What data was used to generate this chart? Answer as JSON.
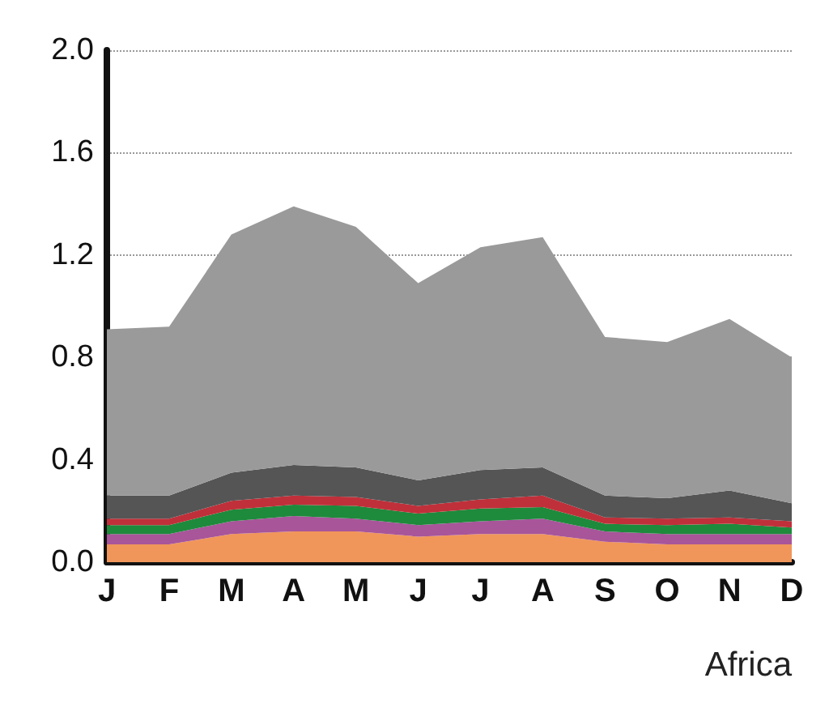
{
  "chart_data": {
    "type": "area",
    "stacked": true,
    "categories": [
      "J",
      "F",
      "M",
      "A",
      "M",
      "J",
      "J",
      "A",
      "S",
      "O",
      "N",
      "D"
    ],
    "series": [
      {
        "color": "#f0965a",
        "values": [
          0.07,
          0.07,
          0.11,
          0.12,
          0.12,
          0.1,
          0.11,
          0.11,
          0.08,
          0.07,
          0.07,
          0.07
        ]
      },
      {
        "color": "#a8559a",
        "values": [
          0.04,
          0.04,
          0.05,
          0.06,
          0.05,
          0.045,
          0.05,
          0.06,
          0.04,
          0.04,
          0.04,
          0.04
        ]
      },
      {
        "color": "#1e8a3c",
        "values": [
          0.035,
          0.035,
          0.045,
          0.045,
          0.05,
          0.045,
          0.05,
          0.045,
          0.03,
          0.035,
          0.04,
          0.025
        ]
      },
      {
        "color": "#c0303a",
        "values": [
          0.025,
          0.025,
          0.035,
          0.035,
          0.035,
          0.03,
          0.035,
          0.045,
          0.025,
          0.025,
          0.025,
          0.025
        ]
      },
      {
        "color": "#555555",
        "values": [
          0.09,
          0.09,
          0.11,
          0.12,
          0.115,
          0.1,
          0.115,
          0.11,
          0.085,
          0.08,
          0.105,
          0.07
        ]
      },
      {
        "color": "#9a9a9a",
        "values": [
          0.65,
          0.66,
          0.93,
          1.01,
          0.94,
          0.77,
          0.87,
          0.9,
          0.62,
          0.61,
          0.67,
          0.57
        ]
      }
    ],
    "ylim": [
      0,
      2
    ],
    "yticks": [
      {
        "value": 0,
        "label": "0.0"
      },
      0.4,
      0.8,
      1.2,
      1.6,
      {
        "value": 2,
        "label": "2.0"
      }
    ],
    "grid": "y",
    "annotations": [
      "Africa"
    ]
  }
}
